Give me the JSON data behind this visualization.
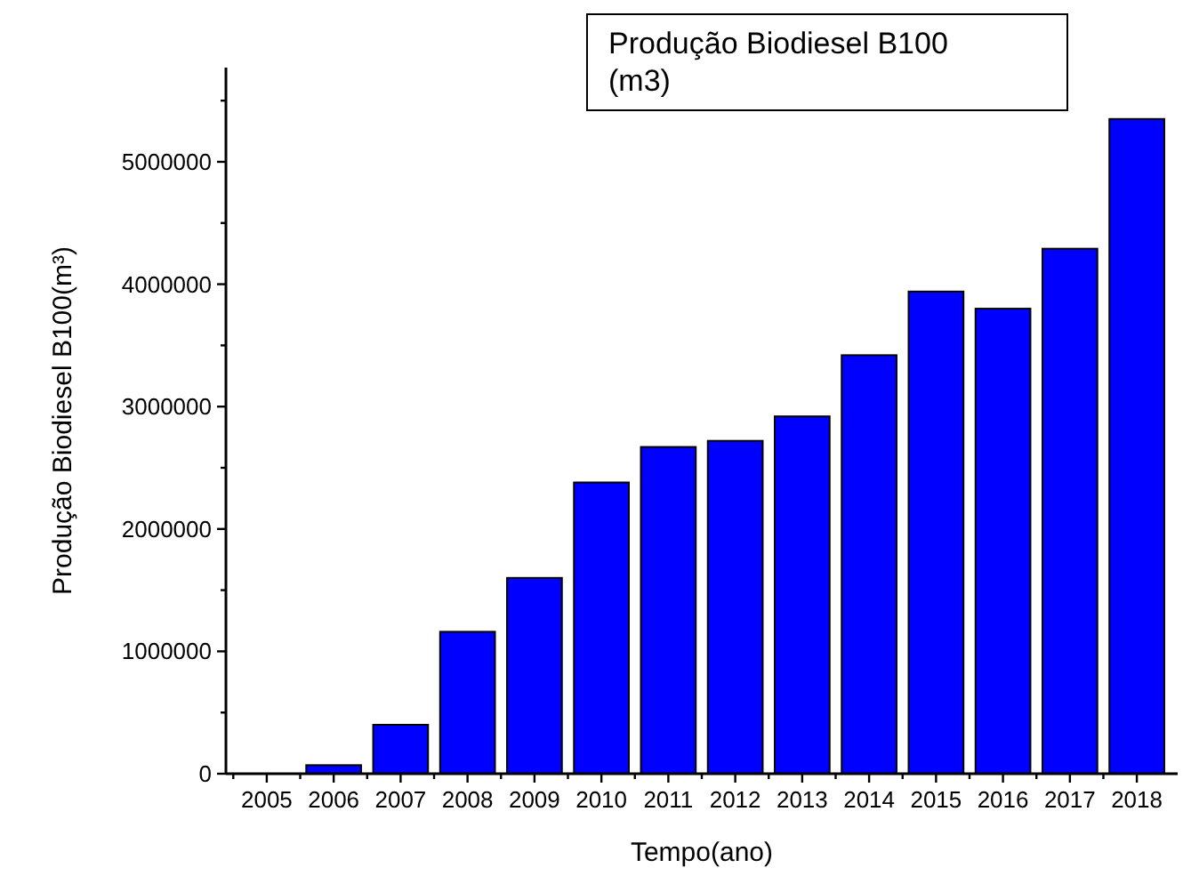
{
  "chart_data": {
    "type": "bar",
    "xlabel": "Tempo(ano)",
    "ylabel": "Produção Biodiesel B100(m³)",
    "categories": [
      "2005",
      "2006",
      "2007",
      "2008",
      "2009",
      "2010",
      "2011",
      "2012",
      "2013",
      "2014",
      "2015",
      "2016",
      "2017",
      "2018"
    ],
    "series": [
      {
        "name": "Produção Biodiesel B100 (m3)",
        "color": "#0000ff",
        "values": [
          0,
          70000,
          400000,
          1160000,
          1600000,
          2380000,
          2670000,
          2720000,
          2920000,
          3420000,
          3940000,
          3800000,
          4290000,
          5350000
        ]
      }
    ],
    "ylim": [
      0,
      5770000
    ],
    "yticks": [
      0,
      {
        "value": 500000,
        "label": null
      },
      1000000,
      {
        "value": 1500000,
        "label": null
      },
      2000000,
      {
        "value": 2500000,
        "label": null
      },
      3000000,
      {
        "value": 3500000,
        "label": null
      },
      4000000,
      {
        "value": 4500000,
        "label": null
      },
      5000000,
      {
        "value": 5500000,
        "label": null
      }
    ],
    "legend": "top right",
    "grid": false
  }
}
